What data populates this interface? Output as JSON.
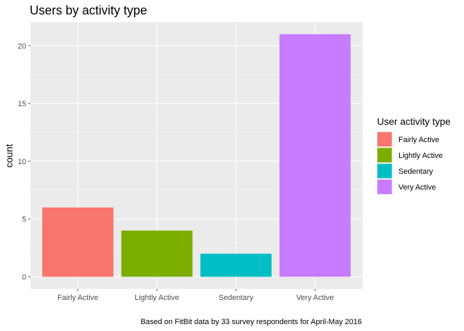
{
  "chart_data": {
    "type": "bar",
    "title": "Users by activity type",
    "xlabel": "",
    "ylabel": "count",
    "categories": [
      "Fairly Active",
      "Lightly Active",
      "Sedentary",
      "Very Active"
    ],
    "values": [
      6,
      4,
      2,
      21
    ],
    "colors": [
      "#F8766D",
      "#7CAE00",
      "#00BFC4",
      "#C77CFF"
    ],
    "ylim": [
      -1.05,
      22.05
    ],
    "yticks": [
      0,
      5,
      10,
      15,
      20
    ],
    "grid": true,
    "legend": {
      "title": "User activity type",
      "position": "right",
      "entries": [
        "Fairly Active",
        "Lightly Active",
        "Sedentary",
        "Very Active"
      ]
    },
    "caption": "Based on FitBit data by 33 survey respondents for April-May 2016"
  },
  "theme": {
    "panel_background": "#EBEBEB",
    "grid_color": "#FFFFFF",
    "tick_color": "#4D4D4D"
  }
}
